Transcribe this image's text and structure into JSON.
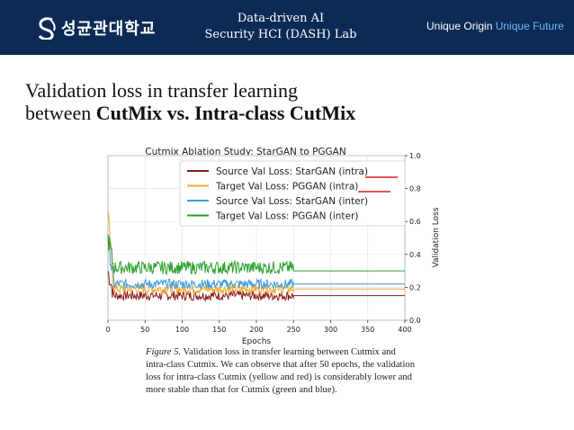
{
  "header": {
    "logo_text": "성균관대학교",
    "lab_line1": "Data-driven AI",
    "lab_line2": "Security HCI (DASH) Lab",
    "slogan_part1": "Unique Origin",
    "slogan_part2": "Unique Future",
    "background_color": "#0c2a55",
    "accent_color": "#6fb6ff"
  },
  "slide": {
    "title_line1": "Validation loss in transfer learning",
    "title_line2_prefix": "between",
    "title_line2_bold": "CutMix vs. Intra-class CutMix"
  },
  "chart_data": {
    "type": "line",
    "title": "Cutmix Ablation Study: StarGAN to PGGAN",
    "xlabel": "Epochs",
    "ylabel": "Validation Loss",
    "xlim": [
      0,
      400
    ],
    "ylim": [
      0.0,
      1.0
    ],
    "x_ticks": [
      "0",
      "50",
      "100",
      "150",
      "200",
      "250",
      "300",
      "350",
      "400"
    ],
    "y_ticks": [
      "0.0",
      "0.2",
      "0.4",
      "0.6",
      "0.8",
      "1.0"
    ],
    "y_axis_side": "right",
    "grid": true,
    "legend_position": "top-right",
    "series": [
      {
        "name": "Source Val Loss: StarGAN (intra)",
        "color": "#8b1a1a",
        "start": 0.3,
        "base": 0.15,
        "noise": 0.03,
        "final": 0.15
      },
      {
        "name": "Target Val Loss: PGGAN (intra)",
        "color": "#f2a92c",
        "start": 0.65,
        "base": 0.19,
        "noise": 0.03,
        "final": 0.19
      },
      {
        "name": "Source Val Loss: StarGAN (inter)",
        "color": "#3e9be0",
        "start": 0.5,
        "base": 0.22,
        "noise": 0.03,
        "final": 0.22
      },
      {
        "name": "Target Val Loss: PGGAN (inter)",
        "color": "#2aa02a",
        "start": 0.5,
        "base": 0.32,
        "noise": 0.04,
        "final": 0.3
      }
    ],
    "noisy_until_epoch": 250,
    "flat_from_epoch": 250
  },
  "caption": {
    "label": "Figure 5.",
    "text": "Validation loss in transfer learning between Cutmix and intra-class Cutmix. We can observe that after 50 epochs, the validation loss for intra-class Cutmix (yellow and red) is considerably lower and more stable than that for Cutmix (green and blue)."
  }
}
